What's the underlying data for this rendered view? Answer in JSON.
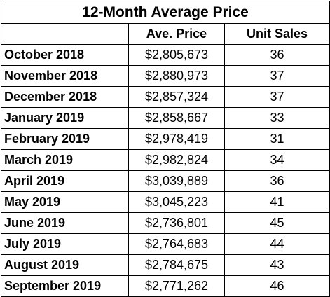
{
  "chart_data": {
    "type": "table",
    "title": "12-Month Average Price",
    "columns": [
      "",
      "Ave. Price",
      "Unit Sales"
    ],
    "rows": [
      {
        "month": "October 2018",
        "price": "$2,805,673",
        "units": "36"
      },
      {
        "month": "November 2018",
        "price": "$2,880,973",
        "units": "37"
      },
      {
        "month": "December 2018",
        "price": "$2,857,324",
        "units": "37"
      },
      {
        "month": "January 2019",
        "price": "$2,858,667",
        "units": "33"
      },
      {
        "month": "February 2019",
        "price": "$2,978,419",
        "units": "31"
      },
      {
        "month": "March 2019",
        "price": "$2,982,824",
        "units": "34"
      },
      {
        "month": "April 2019",
        "price": "$3,039,889",
        "units": "36"
      },
      {
        "month": "May 2019",
        "price": "$3,045,223",
        "units": "41"
      },
      {
        "month": "June 2019",
        "price": "$2,736,801",
        "units": "45"
      },
      {
        "month": "July 2019",
        "price": "$2,764,683",
        "units": "44"
      },
      {
        "month": "August 2019",
        "price": "$2,784,675",
        "units": "43"
      },
      {
        "month": "September 2019",
        "price": "$2,771,262",
        "units": "46"
      }
    ]
  }
}
